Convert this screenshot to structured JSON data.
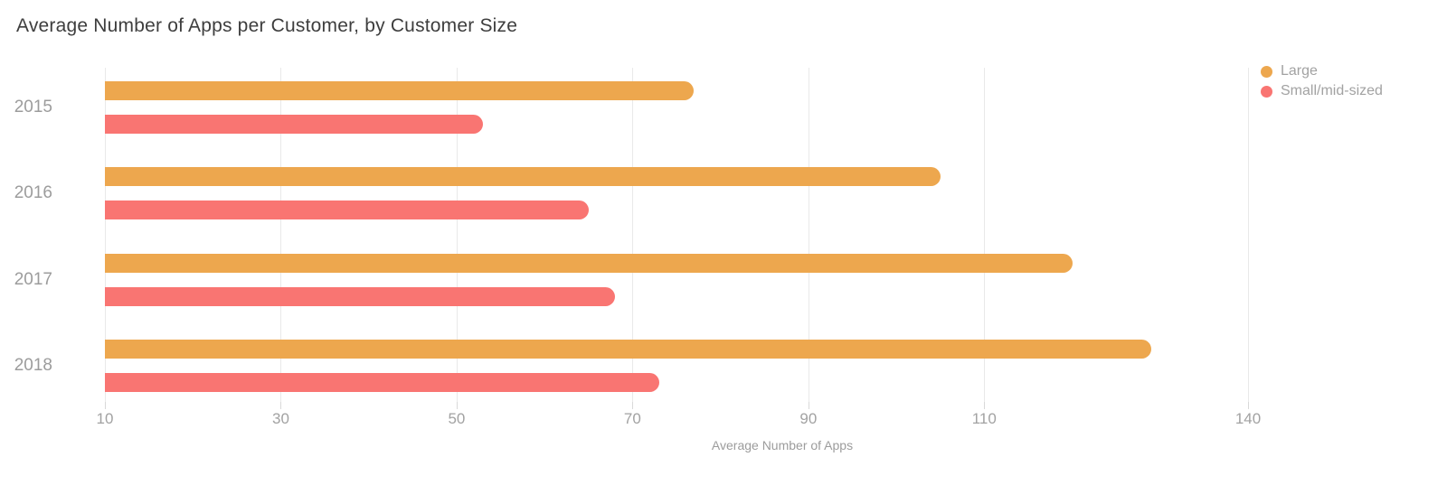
{
  "title": "Average Number of Apps per Customer, by Customer Size",
  "chart_data": {
    "type": "bar",
    "orientation": "horizontal",
    "title": "Average Number of Apps per Customer, by Customer Size",
    "xlabel": "Average Number of Apps",
    "categories": [
      "2015",
      "2016",
      "2017",
      "2018"
    ],
    "series": [
      {
        "name": "Large",
        "color": "#EDA74E",
        "values": [
          77,
          105,
          120,
          129
        ]
      },
      {
        "name": "Small/mid-sized",
        "color": "#F97572",
        "values": [
          53,
          65,
          68,
          73
        ]
      }
    ],
    "x_ticks": [
      10,
      30,
      50,
      70,
      90,
      110,
      140
    ],
    "xlim": [
      10,
      140
    ],
    "grid": "vertical-only",
    "legend_position": "top-right"
  },
  "colors": {
    "background": "#ffffff",
    "title_text": "#3e3e3e",
    "axis_text": "#9d9d9d",
    "legend_text": "#a2a2a2",
    "gridline": "#e9e9e9",
    "tick_mark": "#d9d9d9",
    "large_series": "#EDA74E",
    "small_series": "#F97572"
  }
}
